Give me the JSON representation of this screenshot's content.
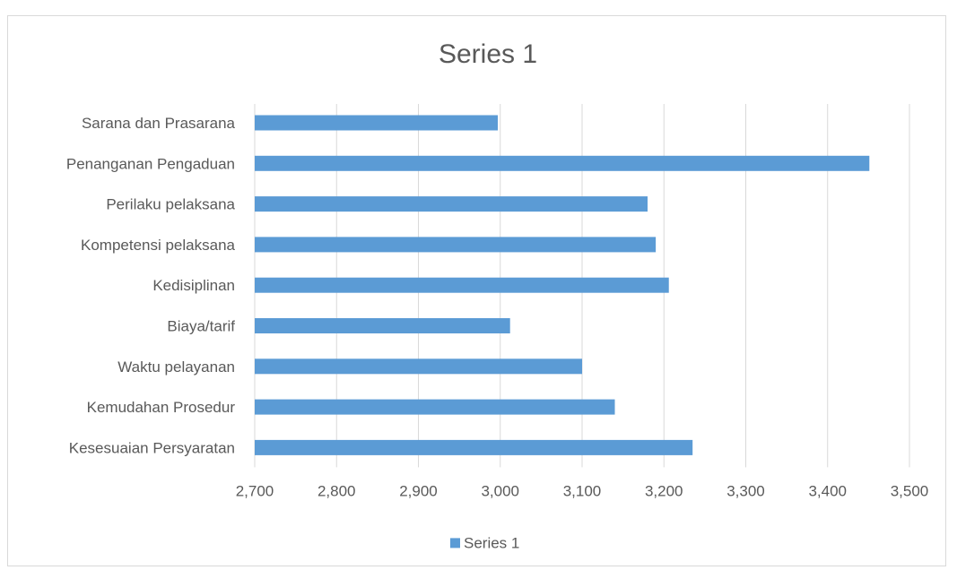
{
  "chart_data": {
    "type": "bar",
    "orientation": "horizontal",
    "title": "Series 1",
    "categories": [
      "Sarana dan Prasarana",
      "Penanganan Pengaduan",
      "Perilaku pelaksana",
      "Kompetensi pelaksana",
      "Kedisiplinan",
      "Biaya/tarif",
      "Waktu pelayanan",
      "Kemudahan Prosedur",
      "Kesesuaian Persyaratan"
    ],
    "series": [
      {
        "name": "Series 1",
        "color": "#5b9bd5",
        "values": [
          2.997,
          3.451,
          3.18,
          3.19,
          3.206,
          3.012,
          3.1,
          3.14,
          3.235
        ]
      }
    ],
    "xlim": [
      2.7,
      3.5
    ],
    "xticks": [
      2.7,
      2.8,
      2.9,
      3.0,
      3.1,
      3.2,
      3.3,
      3.4,
      3.5
    ],
    "xtick_labels": [
      "2,700",
      "2,800",
      "2,900",
      "3,000",
      "3,100",
      "3,200",
      "3,300",
      "3,400",
      "3,500"
    ],
    "xlabel": "",
    "ylabel": "",
    "grid": "vertical",
    "legend": {
      "position": "bottom",
      "entries": [
        "Series 1"
      ]
    },
    "colors": {
      "bar": "#5b9bd5",
      "grid": "#d9d9d9",
      "text": "#595959"
    }
  }
}
